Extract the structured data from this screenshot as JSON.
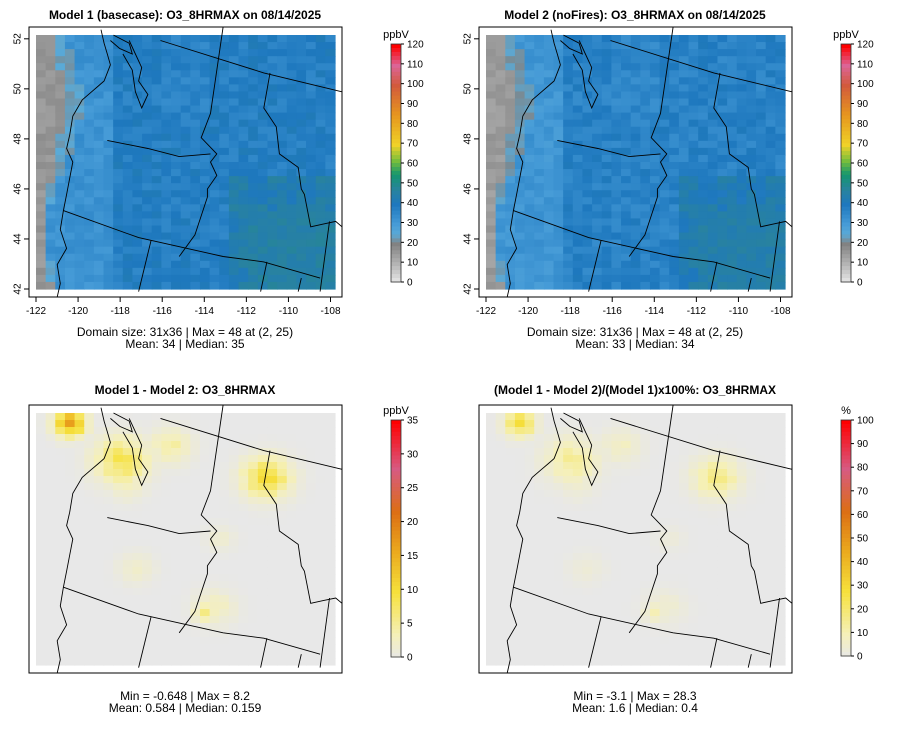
{
  "panels": [
    {
      "title": "Model 1 (basecase): O3_8HRMAX on 08/14/2025",
      "kind": "ozone",
      "axes": true,
      "x_ticks": [
        "-122",
        "-120",
        "-118",
        "-116",
        "-114",
        "-112",
        "-110",
        "-108"
      ],
      "y_ticks": [
        "42",
        "44",
        "46",
        "48",
        "50",
        "52"
      ],
      "colorbar": {
        "unit": "ppbV",
        "ticks": [
          "0",
          "10",
          "20",
          "30",
          "40",
          "50",
          "60",
          "70",
          "80",
          "90",
          "100",
          "110",
          "120"
        ]
      },
      "stats_line1": "Domain size: 31x36 | Max = 48 at (2, 25)",
      "stats_line2": "Mean: 34 |  Median: 35"
    },
    {
      "title": "Model 2 (noFires): O3_8HRMAX on 08/14/2025",
      "kind": "ozone",
      "axes": true,
      "x_ticks": [
        "-122",
        "-120",
        "-118",
        "-116",
        "-114",
        "-112",
        "-110",
        "-108"
      ],
      "y_ticks": [
        "42",
        "44",
        "46",
        "48",
        "50",
        "52"
      ],
      "colorbar": {
        "unit": "ppbV",
        "ticks": [
          "0",
          "10",
          "20",
          "30",
          "40",
          "50",
          "60",
          "70",
          "80",
          "90",
          "100",
          "110",
          "120"
        ]
      },
      "stats_line1": "Domain size: 31x36 | Max = 48 at (2, 25)",
      "stats_line2": "Mean: 33 |  Median: 34"
    },
    {
      "title": "Model 1 - Model 2: O3_8HRMAX",
      "kind": "diff",
      "axes": false,
      "colorbar": {
        "unit": "ppbV",
        "ticks": [
          "0",
          "5",
          "10",
          "15",
          "20",
          "25",
          "30",
          "35"
        ]
      },
      "stats_line1": "Min = -0.648 | Max = 8.2",
      "stats_line2": "Mean: 0.584 |  Median: 0.159"
    },
    {
      "title": "(Model 1 - Model 2)/(Model 1)x100%: O3_8HRMAX",
      "kind": "pct",
      "axes": false,
      "colorbar": {
        "unit": "%",
        "ticks": [
          "0",
          "10",
          "20",
          "30",
          "40",
          "50",
          "60",
          "70",
          "80",
          "90",
          "100"
        ]
      },
      "stats_line1": "Min = -3.1 | Max = 28.3",
      "stats_line2": "Mean: 1.6 |  Median: 0.4"
    }
  ],
  "chart_data": [
    {
      "type": "heatmap",
      "title": "Model 1 (basecase): O3_8HRMAX on 08/14/2025",
      "xlim": [
        -122,
        -108
      ],
      "ylim": [
        42,
        52
      ],
      "colorbar_range": [
        0,
        120
      ],
      "unit": "ppbV",
      "grid": [
        31,
        36
      ],
      "max": 48,
      "max_at": [
        2,
        25
      ],
      "mean": 34,
      "median": 35
    },
    {
      "type": "heatmap",
      "title": "Model 2 (noFires): O3_8HRMAX on 08/14/2025",
      "xlim": [
        -122,
        -108
      ],
      "ylim": [
        42,
        52
      ],
      "colorbar_range": [
        0,
        120
      ],
      "unit": "ppbV",
      "grid": [
        31,
        36
      ],
      "max": 48,
      "max_at": [
        2,
        25
      ],
      "mean": 33,
      "median": 34
    },
    {
      "type": "heatmap",
      "title": "Model 1 - Model 2: O3_8HRMAX",
      "colorbar_range": [
        0,
        35
      ],
      "unit": "ppbV",
      "min": -0.648,
      "max": 8.2,
      "mean": 0.584,
      "median": 0.159
    },
    {
      "type": "heatmap",
      "title": "(Model 1 - Model 2)/(Model 1)x100%: O3_8HRMAX",
      "colorbar_range": [
        0,
        100
      ],
      "unit": "%",
      "min": -3.1,
      "max": 28.3,
      "mean": 1.6,
      "median": 0.4
    }
  ]
}
